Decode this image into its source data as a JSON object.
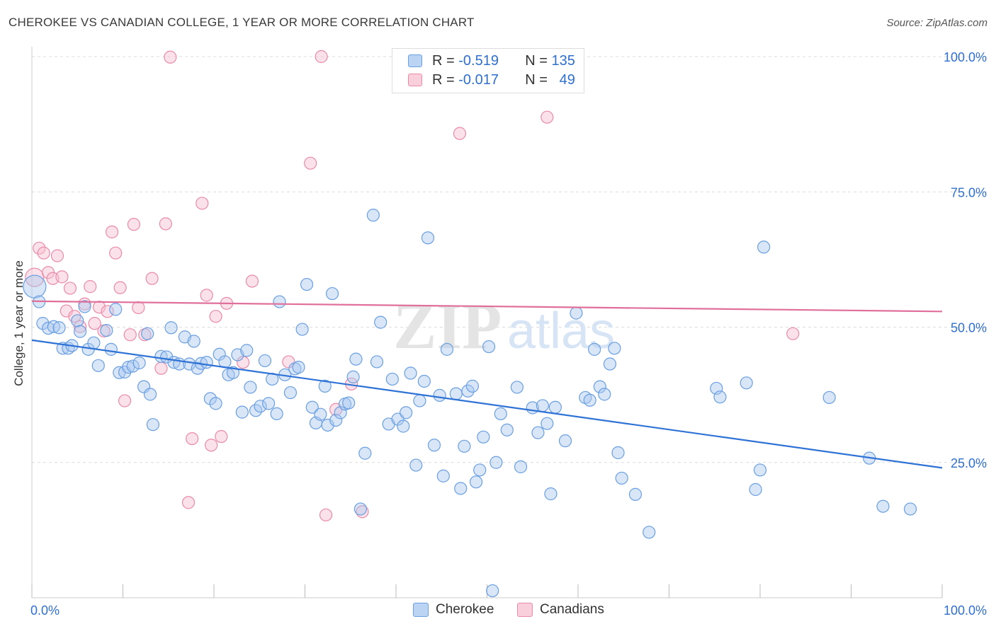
{
  "title": "CHEROKEE VS CANADIAN COLLEGE, 1 YEAR OR MORE CORRELATION CHART",
  "source": "Source: ZipAtlas.com",
  "watermark": {
    "zip": "ZIP",
    "atlas": "atlas"
  },
  "legend": {
    "series1": {
      "r_label": "R =",
      "r_value": "-0.519",
      "n_label": "N =",
      "n_value": "135"
    },
    "series2": {
      "r_label": "R =",
      "r_value": "-0.017",
      "n_label": "N =",
      "n_value": "49"
    }
  },
  "colors": {
    "blue_fill": "#a9c8f0",
    "blue_stroke": "#6a9fe0",
    "blue_line": "#2f72d6",
    "pink_fill": "#f7bfd1",
    "pink_stroke": "#e98aa9",
    "pink_line": "#e0709a",
    "grid": "#dcdcdc",
    "axis_text": "#2f6fce"
  },
  "chart_data": {
    "type": "scatter",
    "title": "CHEROKEE VS CANADIAN COLLEGE, 1 YEAR OR MORE CORRELATION CHART",
    "xlabel": "",
    "ylabel": "College, 1 year or more",
    "xlim": [
      0,
      100
    ],
    "ylim": [
      0,
      100
    ],
    "x_tick_labels": [
      "0.0%",
      "100.0%"
    ],
    "y_ticks": [
      25,
      50,
      75,
      100
    ],
    "y_tick_labels": [
      "25.0%",
      "50.0%",
      "75.0%",
      "100.0%"
    ],
    "series": [
      {
        "name": "Cherokee",
        "trend": [
          [
            0,
            47.6
          ],
          [
            100,
            24.0
          ]
        ],
        "points": [
          [
            0.3,
            57.5
          ],
          [
            0.8,
            54.7
          ],
          [
            1.2,
            50.7
          ],
          [
            1.8,
            49.8
          ],
          [
            2.4,
            50.1
          ],
          [
            3,
            49.9
          ],
          [
            3.4,
            46.1
          ],
          [
            4.0,
            46.1
          ],
          [
            4.4,
            46.6
          ],
          [
            5.0,
            51.2
          ],
          [
            5.3,
            49.2
          ],
          [
            5.8,
            53.8
          ],
          [
            6.2,
            45.9
          ],
          [
            6.8,
            47.1
          ],
          [
            7.3,
            42.9
          ],
          [
            8.2,
            49.4
          ],
          [
            8.7,
            45.9
          ],
          [
            9.2,
            53.3
          ],
          [
            9.6,
            41.6
          ],
          [
            10.2,
            41.7
          ],
          [
            10.6,
            42.6
          ],
          [
            11.1,
            42.8
          ],
          [
            11.8,
            43.4
          ],
          [
            12.3,
            39.0
          ],
          [
            12.7,
            48.8
          ],
          [
            13.0,
            37.6
          ],
          [
            13.3,
            32.0
          ],
          [
            14.2,
            44.6
          ],
          [
            14.8,
            44.5
          ],
          [
            15.3,
            49.9
          ],
          [
            15.6,
            43.5
          ],
          [
            16.2,
            43.2
          ],
          [
            16.8,
            48.2
          ],
          [
            17.3,
            43.2
          ],
          [
            17.8,
            47.4
          ],
          [
            18.2,
            42.4
          ],
          [
            18.6,
            43.3
          ],
          [
            19.2,
            43.5
          ],
          [
            19.6,
            36.8
          ],
          [
            20.2,
            35.9
          ],
          [
            20.6,
            45.0
          ],
          [
            21.2,
            43.6
          ],
          [
            21.6,
            41.2
          ],
          [
            22.1,
            41.6
          ],
          [
            22.6,
            44.9
          ],
          [
            23.1,
            34.3
          ],
          [
            23.6,
            45.7
          ],
          [
            24.0,
            38.9
          ],
          [
            24.6,
            34.6
          ],
          [
            25.1,
            35.4
          ],
          [
            25.6,
            43.8
          ],
          [
            26.0,
            35.9
          ],
          [
            26.4,
            40.4
          ],
          [
            26.9,
            34.0
          ],
          [
            27.2,
            54.7
          ],
          [
            27.8,
            41.2
          ],
          [
            28.4,
            37.9
          ],
          [
            28.9,
            42.3
          ],
          [
            29.3,
            42.6
          ],
          [
            29.7,
            49.6
          ],
          [
            30.2,
            57.9
          ],
          [
            30.8,
            35.2
          ],
          [
            31.2,
            32.3
          ],
          [
            31.7,
            33.9
          ],
          [
            32.2,
            39.1
          ],
          [
            32.5,
            31.9
          ],
          [
            33.0,
            56.2
          ],
          [
            33.4,
            32.8
          ],
          [
            33.9,
            34.2
          ],
          [
            34.4,
            35.8
          ],
          [
            34.8,
            36.0
          ],
          [
            35.3,
            40.8
          ],
          [
            35.6,
            44.1
          ],
          [
            36.1,
            16.4
          ],
          [
            36.6,
            26.7
          ],
          [
            37.5,
            70.7
          ],
          [
            37.9,
            43.6
          ],
          [
            38.3,
            50.9
          ],
          [
            39.2,
            32.1
          ],
          [
            39.6,
            40.4
          ],
          [
            40.2,
            33.0
          ],
          [
            40.8,
            31.7
          ],
          [
            41.1,
            34.2
          ],
          [
            41.6,
            41.5
          ],
          [
            42.2,
            24.5
          ],
          [
            42.6,
            36.4
          ],
          [
            43.1,
            40.0
          ],
          [
            43.5,
            66.5
          ],
          [
            44.2,
            28.2
          ],
          [
            44.8,
            37.4
          ],
          [
            45.2,
            22.5
          ],
          [
            45.6,
            45.9
          ],
          [
            46.6,
            37.7
          ],
          [
            47.1,
            20.2
          ],
          [
            47.5,
            28.0
          ],
          [
            47.9,
            38.2
          ],
          [
            48.4,
            39.1
          ],
          [
            48.8,
            21.4
          ],
          [
            49.2,
            23.6
          ],
          [
            49.6,
            29.7
          ],
          [
            50.2,
            46.4
          ],
          [
            50.6,
            1.3
          ],
          [
            51.0,
            25.0
          ],
          [
            51.5,
            34.0
          ],
          [
            52.2,
            31.0
          ],
          [
            53.3,
            38.9
          ],
          [
            53.7,
            24.2
          ],
          [
            55.0,
            35.1
          ],
          [
            55.6,
            30.5
          ],
          [
            56.1,
            35.5
          ],
          [
            56.6,
            32.2
          ],
          [
            57.0,
            19.2
          ],
          [
            57.5,
            35.2
          ],
          [
            58.6,
            29.0
          ],
          [
            59.8,
            52.6
          ],
          [
            60.8,
            37.0
          ],
          [
            61.3,
            36.5
          ],
          [
            61.8,
            45.9
          ],
          [
            62.4,
            39.0
          ],
          [
            62.9,
            37.6
          ],
          [
            63.5,
            43.2
          ],
          [
            64.0,
            46.1
          ],
          [
            64.4,
            26.8
          ],
          [
            64.8,
            22.1
          ],
          [
            66.3,
            19.1
          ],
          [
            67.8,
            12.1
          ],
          [
            75.2,
            38.7
          ],
          [
            75.6,
            37.1
          ],
          [
            78.5,
            39.7
          ],
          [
            79.5,
            20.0
          ],
          [
            80.0,
            23.6
          ],
          [
            80.4,
            64.8
          ],
          [
            87.6,
            37.0
          ],
          [
            92.0,
            25.8
          ],
          [
            93.5,
            16.9
          ],
          [
            96.5,
            16.4
          ]
        ]
      },
      {
        "name": "Canadians",
        "trend": [
          [
            0,
            54.8
          ],
          [
            100,
            52.9
          ]
        ],
        "points": [
          [
            0.3,
            59.2
          ],
          [
            0.8,
            64.6
          ],
          [
            1.3,
            63.7
          ],
          [
            1.8,
            60.1
          ],
          [
            2.3,
            59.0
          ],
          [
            2.8,
            63.2
          ],
          [
            3.3,
            59.3
          ],
          [
            3.8,
            53.0
          ],
          [
            4.2,
            57.2
          ],
          [
            4.7,
            52.0
          ],
          [
            5.3,
            50.1
          ],
          [
            5.8,
            54.3
          ],
          [
            6.4,
            57.5
          ],
          [
            6.9,
            50.7
          ],
          [
            7.4,
            53.7
          ],
          [
            7.9,
            49.3
          ],
          [
            8.3,
            52.9
          ],
          [
            8.8,
            67.6
          ],
          [
            9.2,
            63.7
          ],
          [
            9.7,
            57.3
          ],
          [
            10.2,
            36.4
          ],
          [
            10.8,
            48.6
          ],
          [
            11.2,
            69.0
          ],
          [
            11.7,
            53.6
          ],
          [
            12.4,
            48.6
          ],
          [
            13.2,
            59.0
          ],
          [
            14.2,
            42.4
          ],
          [
            14.7,
            69.1
          ],
          [
            15.2,
            99.9
          ],
          [
            17.2,
            17.6
          ],
          [
            17.6,
            29.4
          ],
          [
            18.7,
            72.9
          ],
          [
            19.2,
            55.9
          ],
          [
            19.7,
            28.2
          ],
          [
            20.2,
            52.0
          ],
          [
            20.8,
            29.8
          ],
          [
            21.4,
            54.4
          ],
          [
            23.2,
            43.5
          ],
          [
            24.2,
            58.5
          ],
          [
            28.2,
            43.6
          ],
          [
            30.6,
            80.3
          ],
          [
            31.8,
            100.0
          ],
          [
            32.3,
            15.3
          ],
          [
            33.4,
            34.8
          ],
          [
            35.1,
            39.5
          ],
          [
            36.3,
            15.9
          ],
          [
            47.0,
            85.8
          ],
          [
            56.6,
            88.8
          ],
          [
            83.6,
            48.8
          ]
        ]
      }
    ]
  },
  "axis": {
    "y_label": "College, 1 year or more",
    "x_min_label": "0.0%",
    "x_max_label": "100.0%"
  },
  "bottom_legend": {
    "item1": "Cherokee",
    "item2": "Canadians"
  }
}
